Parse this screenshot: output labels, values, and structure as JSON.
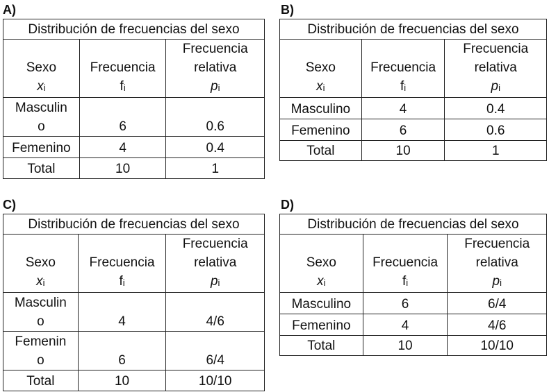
{
  "options": [
    {
      "label": "A)",
      "title": "Distribución de frecuencias del sexo",
      "header": {
        "col1": "Sexo",
        "col1_symbol": "x",
        "col1_sub": "i",
        "col2": "Frecuencia",
        "col2_symbol": "f",
        "col2_sub": "i",
        "col3_line1": "Frecuencia",
        "col3_line2": "relativa",
        "col3_symbol": "p",
        "col3_sub": "i"
      },
      "rows": [
        {
          "sexo_line1": "Masculin",
          "sexo_line2": "o",
          "f": "6",
          "p": "0.6"
        },
        {
          "sexo_line1": "Femenino",
          "sexo_line2": "",
          "f": "4",
          "p": "0.4"
        },
        {
          "sexo_line1": "Total",
          "sexo_line2": "",
          "f": "10",
          "p": "1"
        }
      ]
    },
    {
      "label": "B)",
      "title": "Distribución de frecuencias del sexo",
      "header": {
        "col1": "Sexo",
        "col1_symbol": "x",
        "col1_sub": "i",
        "col2": "Frecuencia",
        "col2_symbol": "f",
        "col2_sub": "i",
        "col3_line1": "Frecuencia",
        "col3_line2": "relativa",
        "col3_symbol": "p",
        "col3_sub": "i"
      },
      "rows": [
        {
          "sexo_line1": "Masculino",
          "sexo_line2": "",
          "f": "4",
          "p": "0.4"
        },
        {
          "sexo_line1": "Femenino",
          "sexo_line2": "",
          "f": "6",
          "p": "0.6"
        },
        {
          "sexo_line1": "Total",
          "sexo_line2": "",
          "f": "10",
          "p": "1"
        }
      ]
    },
    {
      "label": "C)",
      "title": "Distribución de frecuencias del sexo",
      "header": {
        "col1": "Sexo",
        "col1_symbol": "x",
        "col1_sub": "i",
        "col2": "Frecuencia",
        "col2_symbol": "f",
        "col2_sub": "i",
        "col3_line1": "Frecuencia",
        "col3_line2": "relativa",
        "col3_symbol": "p",
        "col3_sub": "i"
      },
      "rows": [
        {
          "sexo_line1": "Masculin",
          "sexo_line2": "o",
          "f": "4",
          "p": "4/6"
        },
        {
          "sexo_line1": "Femenin",
          "sexo_line2": "o",
          "f": "6",
          "p": "6/4"
        },
        {
          "sexo_line1": "Total",
          "sexo_line2": "",
          "f": "10",
          "p": "10/10"
        }
      ]
    },
    {
      "label": "D)",
      "title": "Distribución de frecuencias del sexo",
      "header": {
        "col1": "Sexo",
        "col1_symbol": "x",
        "col1_sub": "i",
        "col2": "Frecuencia",
        "col2_symbol": "f",
        "col2_sub": "i",
        "col3_line1": "Frecuencia",
        "col3_line2": "relativa",
        "col3_symbol": "p",
        "col3_sub": "i"
      },
      "rows": [
        {
          "sexo_line1": "Masculino",
          "sexo_line2": "",
          "f": "6",
          "p": "6/4"
        },
        {
          "sexo_line1": "Femenino",
          "sexo_line2": "",
          "f": "4",
          "p": "4/6"
        },
        {
          "sexo_line1": "Total",
          "sexo_line2": "",
          "f": "10",
          "p": "10/10"
        }
      ]
    }
  ]
}
